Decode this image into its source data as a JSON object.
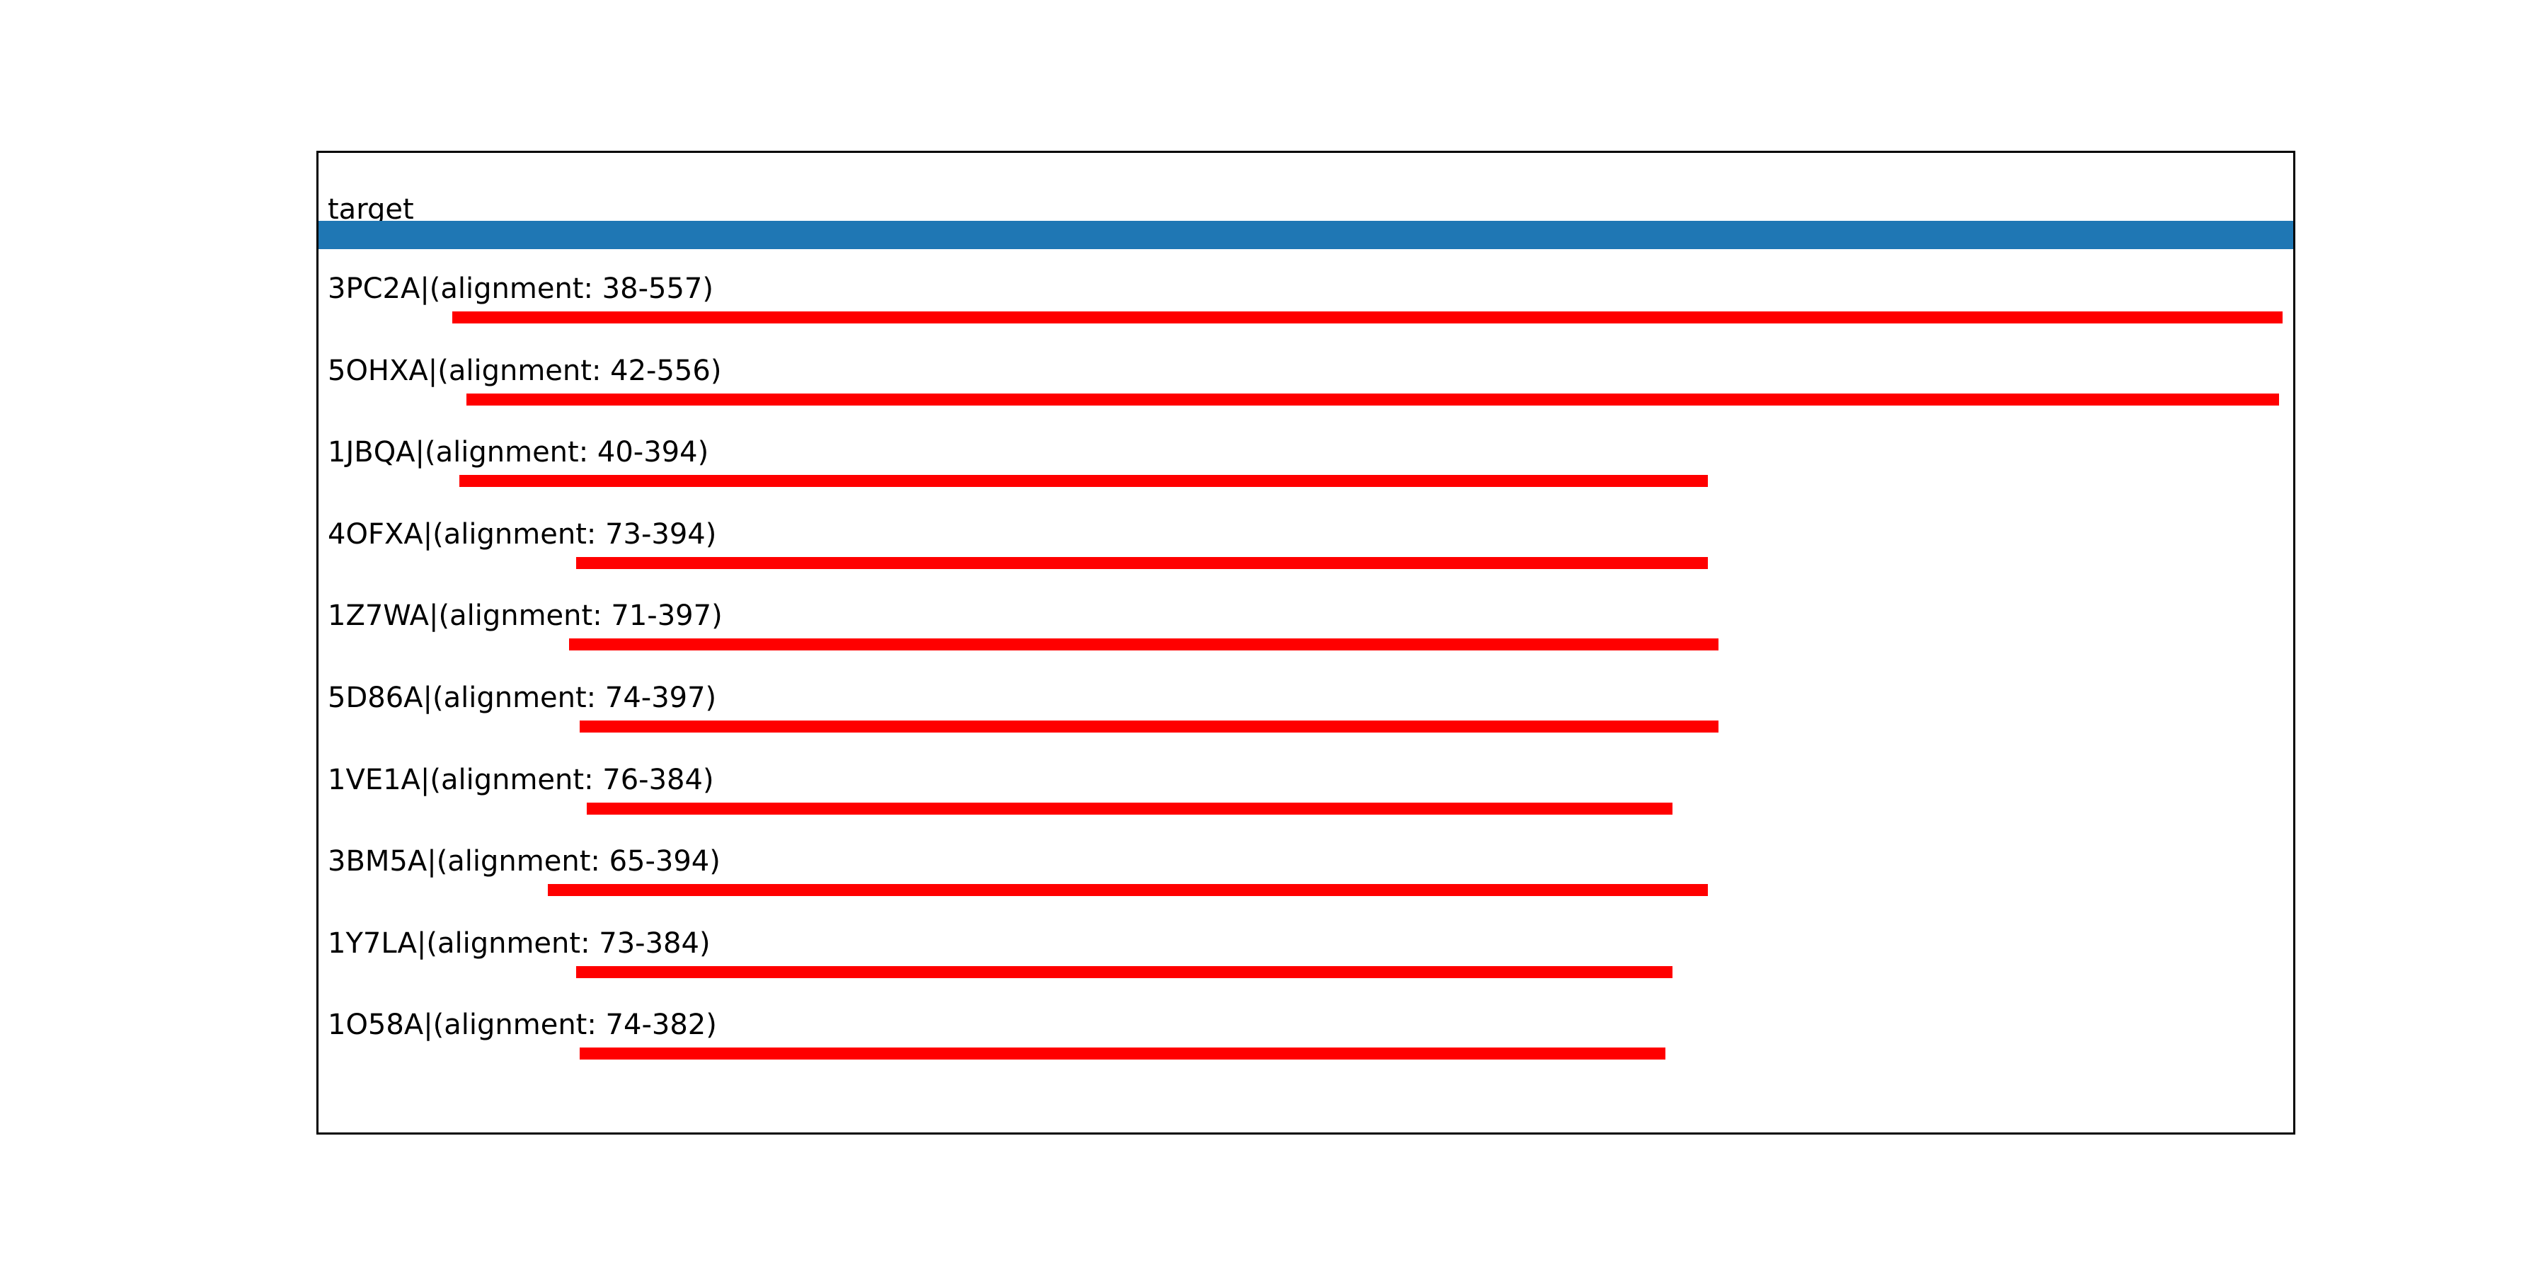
{
  "figure": {
    "background": "#ffffff",
    "border_color": "#000000"
  },
  "colors": {
    "target_bar": "#1f77b4",
    "hit_bar": "#ff0000",
    "text": "#000000"
  },
  "target": {
    "label": "target",
    "start": 0,
    "end": 560
  },
  "hits": [
    {
      "pdb_chain": "3PC2A",
      "label": "3PC2A|(alignment: 38-557)",
      "start": 38,
      "end": 557
    },
    {
      "pdb_chain": "5OHXA",
      "label": "5OHXA|(alignment: 42-556)",
      "start": 42,
      "end": 556
    },
    {
      "pdb_chain": "1JBQA",
      "label": "1JBQA|(alignment: 40-394)",
      "start": 40,
      "end": 394
    },
    {
      "pdb_chain": "4OFXA",
      "label": "4OFXA|(alignment: 73-394)",
      "start": 73,
      "end": 394
    },
    {
      "pdb_chain": "1Z7WA",
      "label": "1Z7WA|(alignment: 71-397)",
      "start": 71,
      "end": 397
    },
    {
      "pdb_chain": "5D86A",
      "label": "5D86A|(alignment: 74-397)",
      "start": 74,
      "end": 397
    },
    {
      "pdb_chain": "1VE1A",
      "label": "1VE1A|(alignment: 76-384)",
      "start": 76,
      "end": 384
    },
    {
      "pdb_chain": "3BM5A",
      "label": "3BM5A|(alignment: 65-394)",
      "start": 65,
      "end": 394
    },
    {
      "pdb_chain": "1Y7LA",
      "label": "1Y7LA|(alignment: 73-384)",
      "start": 73,
      "end": 384
    },
    {
      "pdb_chain": "1O58A",
      "label": "1O58A|(alignment: 74-382)",
      "start": 74,
      "end": 382
    }
  ],
  "chart_data": {
    "type": "bar",
    "orientation": "horizontal",
    "title": "",
    "xlabel": "",
    "ylabel": "",
    "xlim": [
      0,
      560
    ],
    "grid": false,
    "legend_position": "none",
    "categories": [
      "target",
      "3PC2A",
      "5OHXA",
      "1JBQA",
      "4OFXA",
      "1Z7WA",
      "5D86A",
      "1VE1A",
      "3BM5A",
      "1Y7LA",
      "1O58A"
    ],
    "series": [
      {
        "name": "alignment-range-bars",
        "values": [
          [
            0,
            560
          ],
          [
            38,
            557
          ],
          [
            42,
            556
          ],
          [
            40,
            394
          ],
          [
            73,
            394
          ],
          [
            71,
            397
          ],
          [
            74,
            397
          ],
          [
            76,
            384
          ],
          [
            65,
            394
          ],
          [
            73,
            384
          ],
          [
            74,
            382
          ]
        ]
      }
    ],
    "bar_colors": [
      "#1f77b4",
      "#ff0000",
      "#ff0000",
      "#ff0000",
      "#ff0000",
      "#ff0000",
      "#ff0000",
      "#ff0000",
      "#ff0000",
      "#ff0000",
      "#ff0000"
    ],
    "annotations": [
      "target",
      "3PC2A|(alignment: 38-557)",
      "5OHXA|(alignment: 42-556)",
      "1JBQA|(alignment: 40-394)",
      "4OFXA|(alignment: 73-394)",
      "1Z7WA|(alignment: 71-397)",
      "5D86A|(alignment: 74-397)",
      "1VE1A|(alignment: 76-384)",
      "3BM5A|(alignment: 65-394)",
      "1Y7LA|(alignment: 73-384)",
      "1O58A|(alignment: 74-382)"
    ]
  }
}
